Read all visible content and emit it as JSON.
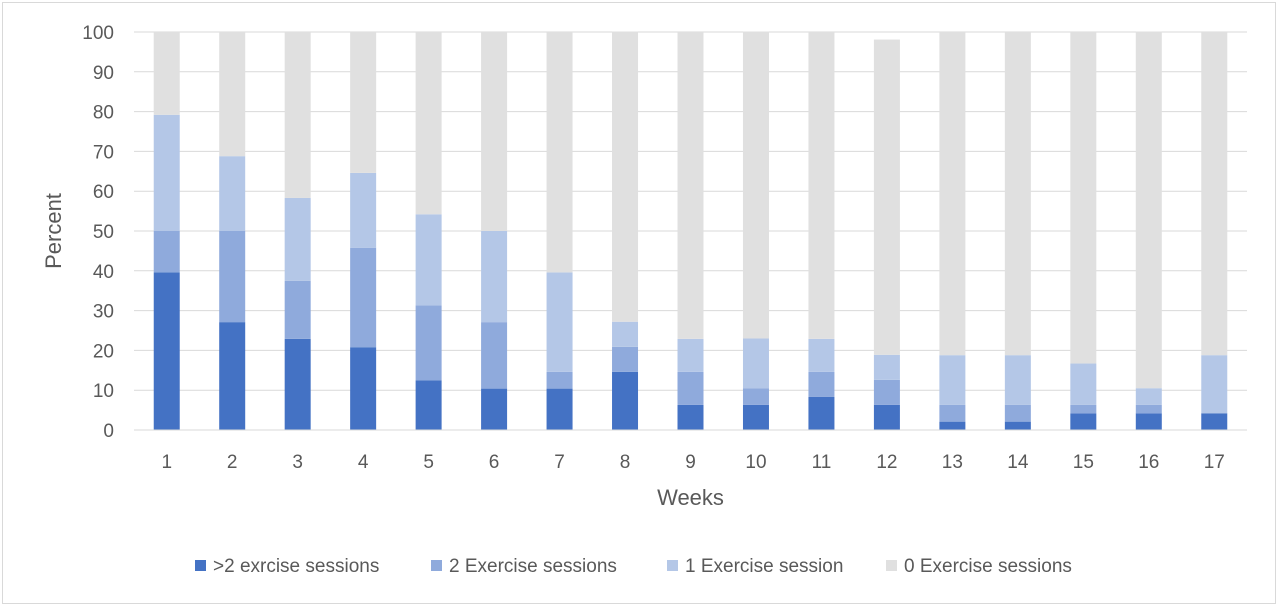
{
  "chart_data": {
    "type": "bar",
    "stacked": true,
    "title": "",
    "xlabel": "Weeks",
    "ylabel": "Percent",
    "ylim": [
      0,
      100
    ],
    "yticks": [
      "0",
      "10",
      "20",
      "30",
      "40",
      "50",
      "60",
      "70",
      "80",
      "90",
      "100"
    ],
    "grid": true,
    "legend_position": "bottom",
    "categories": [
      "1",
      "2",
      "3",
      "4",
      "5",
      "6",
      "7",
      "8",
      "9",
      "10",
      "11",
      "12",
      "13",
      "14",
      "15",
      "16",
      "17"
    ],
    "series": [
      {
        "name": ">2 exrcise sessions",
        "color": "#4472c4",
        "values": [
          39.6,
          27.1,
          22.9,
          20.8,
          12.5,
          10.4,
          10.4,
          14.6,
          6.3,
          6.3,
          8.3,
          6.3,
          2.1,
          2.1,
          4.2,
          4.2,
          4.2
        ]
      },
      {
        "name": "2 Exercise sessions",
        "color": "#8faadc",
        "values": [
          10.4,
          22.9,
          14.6,
          25.0,
          18.8,
          16.7,
          4.2,
          6.3,
          8.3,
          4.2,
          6.3,
          6.3,
          4.2,
          4.2,
          2.1,
          2.1,
          0
        ]
      },
      {
        "name": "1 Exercise session",
        "color": "#b4c7e7",
        "values": [
          29.2,
          18.8,
          20.8,
          18.8,
          22.9,
          22.9,
          25.0,
          6.3,
          8.3,
          12.5,
          8.3,
          6.3,
          12.5,
          12.5,
          10.4,
          4.2,
          14.6
        ]
      },
      {
        "name": "0 Exercise sessions",
        "color": "#e0e0e0",
        "values": [
          20.8,
          31.2,
          41.7,
          35.4,
          45.8,
          50.0,
          60.4,
          72.9,
          77.1,
          77.1,
          77.1,
          79.2,
          81.2,
          81.2,
          83.3,
          89.6,
          81.2
        ]
      }
    ]
  }
}
